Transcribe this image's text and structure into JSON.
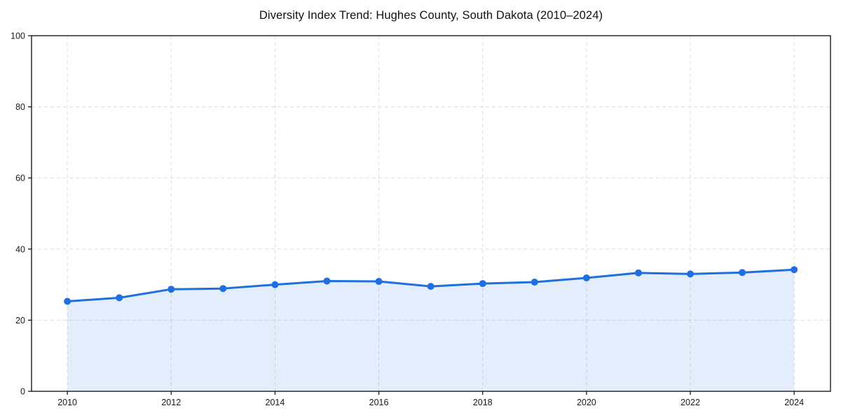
{
  "chart_data": {
    "type": "area",
    "title": "Diversity Index Trend: Hughes County, South Dakota (2010–2024)",
    "xlabel": "",
    "ylabel": "",
    "x": [
      2010,
      2011,
      2012,
      2013,
      2014,
      2015,
      2016,
      2017,
      2018,
      2019,
      2020,
      2021,
      2022,
      2023,
      2024
    ],
    "series": [
      {
        "name": "Diversity Index",
        "values": [
          25.3,
          26.3,
          28.7,
          28.9,
          30.0,
          31.0,
          30.9,
          29.5,
          30.3,
          30.7,
          31.9,
          33.3,
          33.0,
          33.4,
          34.2
        ]
      }
    ],
    "xlim": [
      2009.31,
      2024.7
    ],
    "ylim": [
      0,
      100
    ],
    "xticks": [
      2010,
      2012,
      2014,
      2016,
      2018,
      2020,
      2022,
      2024
    ],
    "yticks": [
      0,
      20,
      40,
      60,
      80,
      100
    ],
    "grid": true,
    "grid_style": "dashed",
    "legend_position": "none",
    "colors": {
      "line": "#1f6fe0",
      "marker": "#1f6fe0",
      "fill": "rgba(31,111,224,0.12)",
      "grid": "#dedede",
      "spine": "#0a0a0a",
      "tick_label": "#1a1a1a",
      "title": "#111111",
      "background": "#ffffff"
    }
  }
}
